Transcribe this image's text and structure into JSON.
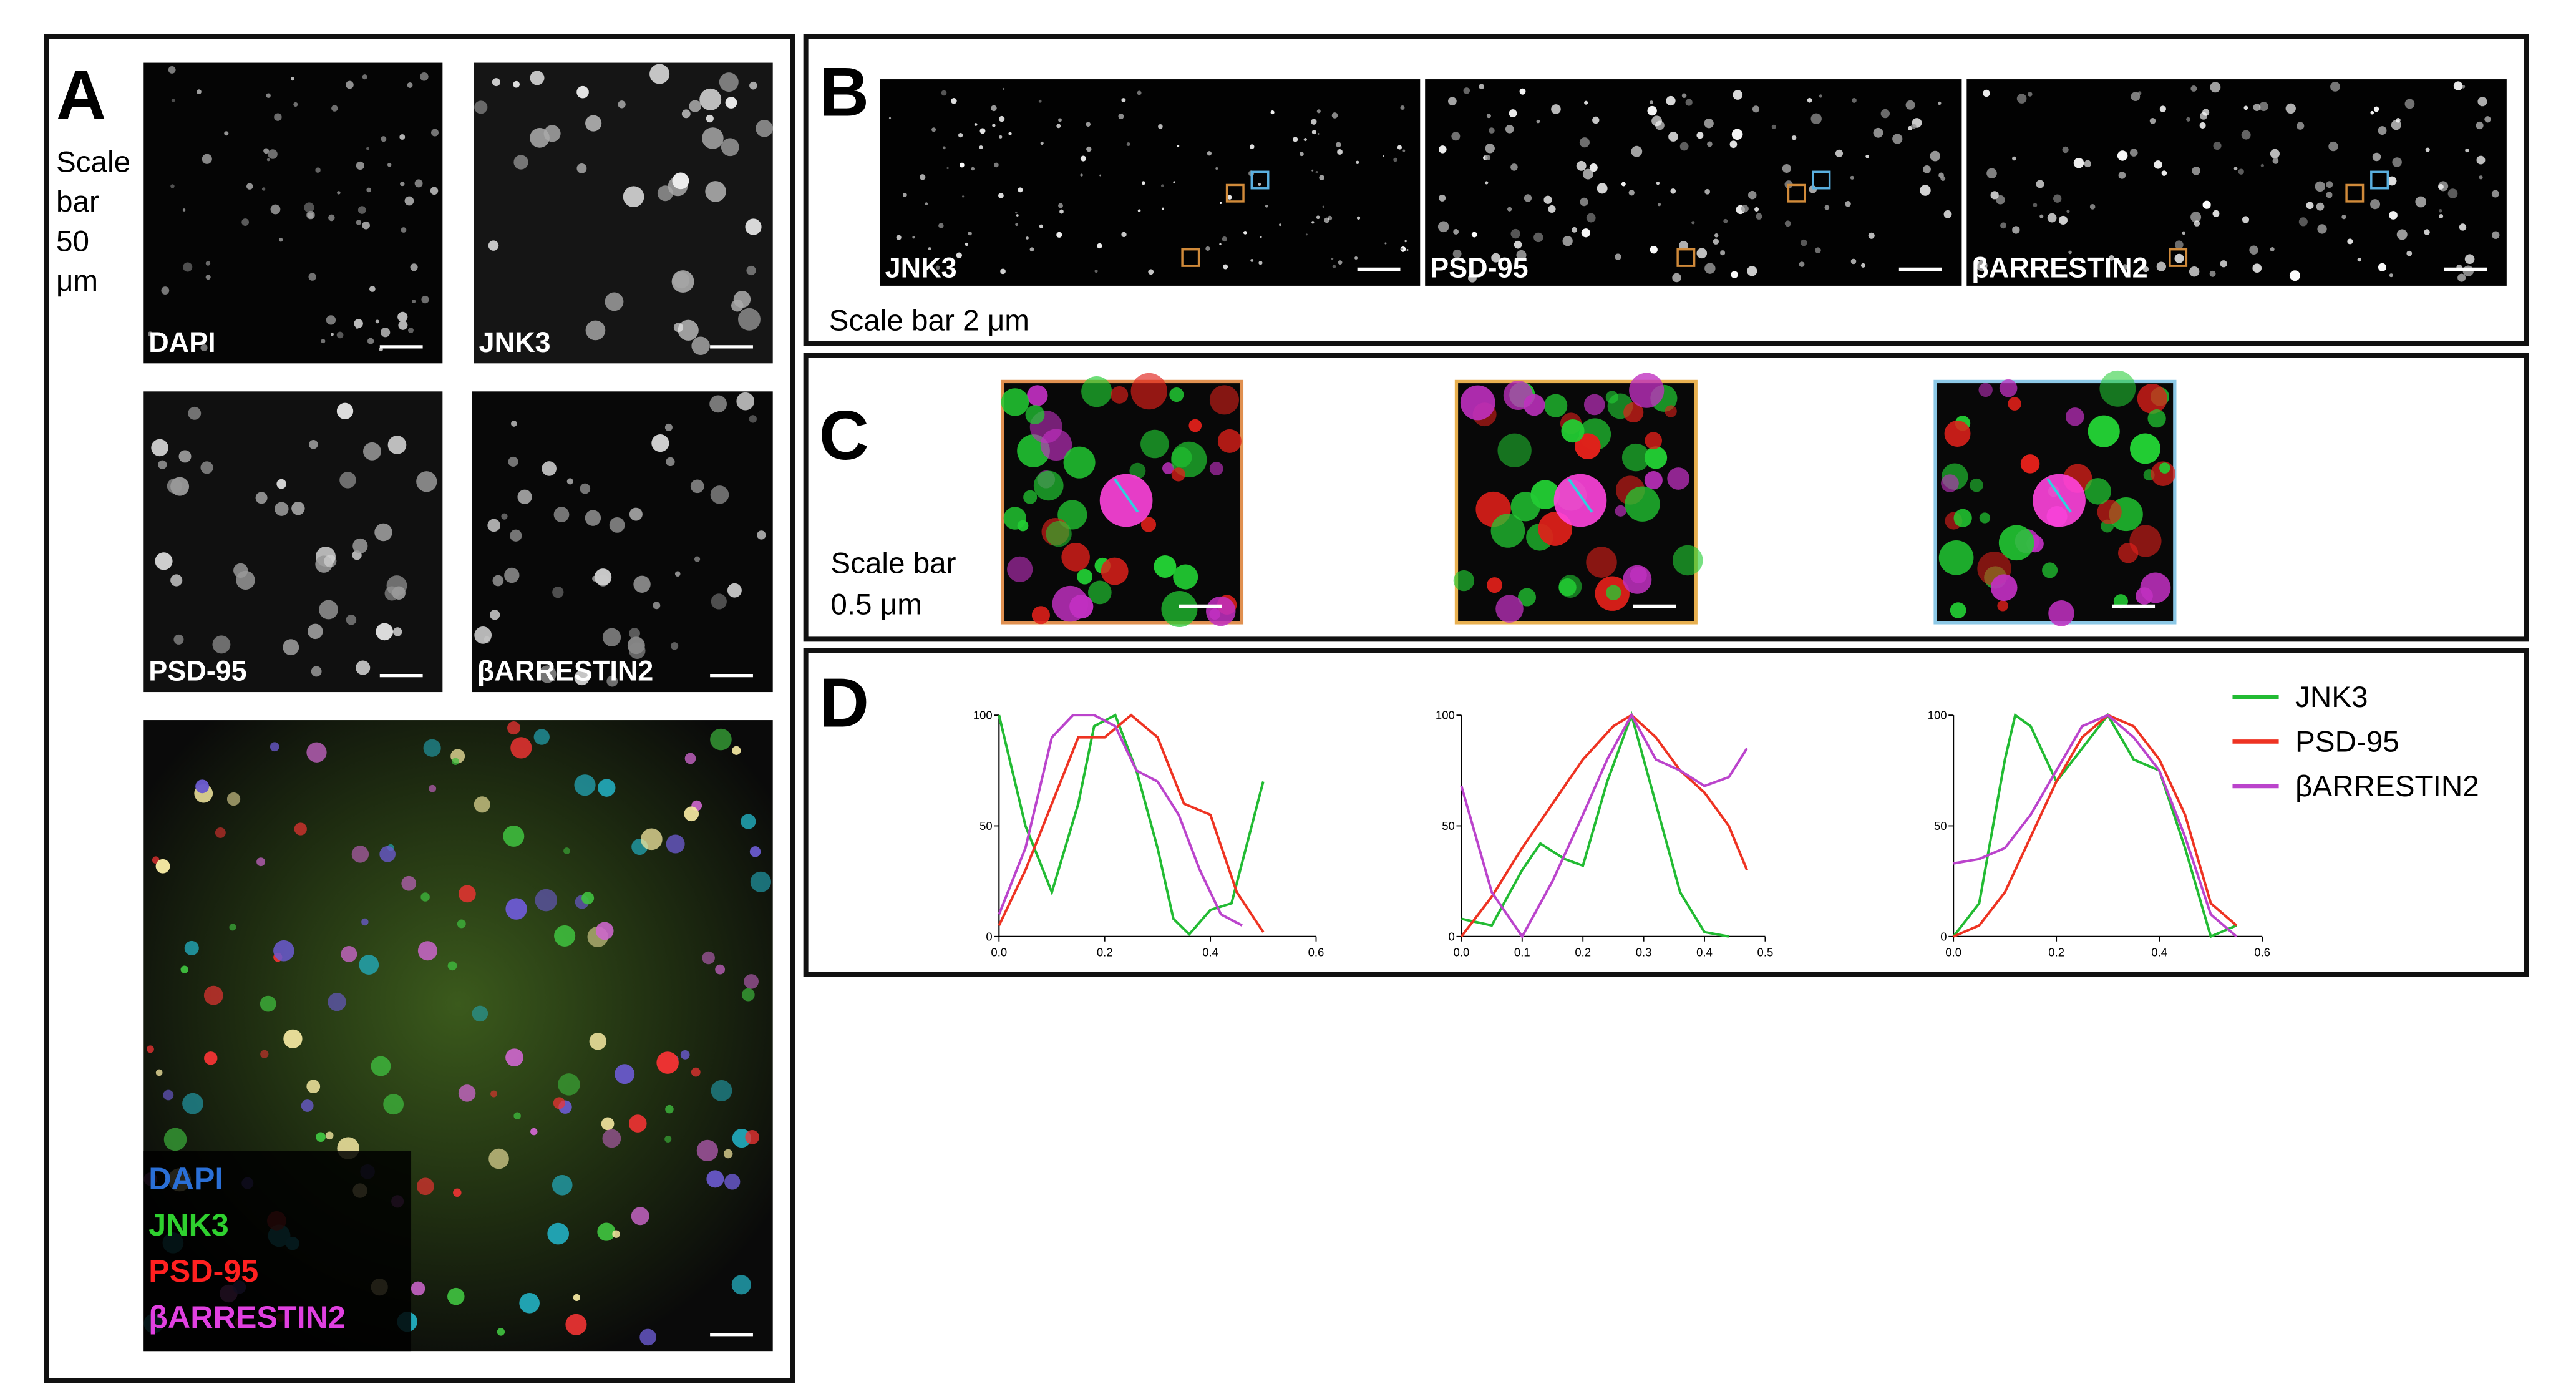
{
  "panel_a": {
    "letter": "A",
    "scale_bar": [
      "Scale",
      "bar",
      "50",
      "μm"
    ],
    "images": [
      "DAPI",
      "JNK3",
      "PSD-95",
      "βARRESTIN2"
    ],
    "merged_legend": [
      "DAPI",
      "JNK3",
      "PSD-95",
      "βARRESTIN2"
    ]
  },
  "panel_b": {
    "letter": "B",
    "images": [
      "JNK3",
      "PSD-95",
      "βARRESTIN2"
    ],
    "scale_bar": "Scale bar 2 μm"
  },
  "panel_c": {
    "letter": "C",
    "scale_bar": [
      "Scale bar",
      "0.5 μm"
    ]
  },
  "panel_d": {
    "letter": "D"
  },
  "chart_data": [
    {
      "type": "line",
      "xlim": [
        0,
        0.6
      ],
      "ylim": [
        0,
        100
      ],
      "xticks": [
        {
          "value": 0,
          "label": "0.0"
        },
        0.2,
        0.4,
        0.6
      ],
      "yticks": [
        0,
        50,
        100
      ],
      "series": [
        {
          "color": "#22bb33",
          "x": [
            0,
            0.05,
            0.1,
            0.15,
            0.18,
            0.22,
            0.26,
            0.3,
            0.33,
            0.36,
            0.4,
            0.44,
            0.5
          ],
          "values": [
            100,
            50,
            20,
            60,
            95,
            100,
            75,
            40,
            8,
            1,
            12,
            15,
            70
          ]
        },
        {
          "color": "#ee3322",
          "x": [
            0,
            0.05,
            0.1,
            0.15,
            0.2,
            0.25,
            0.3,
            0.35,
            0.4,
            0.45,
            0.5
          ],
          "values": [
            5,
            30,
            60,
            90,
            90,
            100,
            90,
            60,
            55,
            20,
            2
          ]
        },
        {
          "color": "#bb44cc",
          "x": [
            0,
            0.05,
            0.1,
            0.14,
            0.18,
            0.22,
            0.26,
            0.3,
            0.34,
            0.38,
            0.42,
            0.46
          ],
          "values": [
            10,
            40,
            90,
            100,
            100,
            95,
            75,
            70,
            55,
            30,
            10,
            5
          ]
        }
      ]
    },
    {
      "type": "line",
      "xlim": [
        0,
        0.5
      ],
      "ylim": [
        0,
        100
      ],
      "xticks": [
        {
          "value": 0,
          "label": "0.0"
        },
        0.1,
        0.2,
        0.3,
        0.4,
        0.5
      ],
      "yticks": [
        0,
        50,
        100
      ],
      "series": [
        {
          "color": "#22bb33",
          "x": [
            0,
            0.05,
            0.1,
            0.13,
            0.17,
            0.2,
            0.24,
            0.28,
            0.32,
            0.36,
            0.4,
            0.44
          ],
          "values": [
            8,
            5,
            30,
            42,
            35,
            32,
            70,
            100,
            60,
            20,
            2,
            0
          ]
        },
        {
          "color": "#ee3322",
          "x": [
            0,
            0.05,
            0.1,
            0.15,
            0.2,
            0.25,
            0.28,
            0.32,
            0.36,
            0.4,
            0.44,
            0.47
          ],
          "values": [
            0,
            18,
            40,
            60,
            80,
            95,
            100,
            90,
            75,
            65,
            50,
            30
          ]
        },
        {
          "color": "#bb44cc",
          "x": [
            0,
            0.05,
            0.1,
            0.15,
            0.2,
            0.24,
            0.28,
            0.32,
            0.36,
            0.4,
            0.44,
            0.47
          ],
          "values": [
            68,
            20,
            0,
            25,
            55,
            80,
            100,
            80,
            75,
            68,
            72,
            85
          ]
        }
      ]
    },
    {
      "type": "line",
      "xlim": [
        0,
        0.6
      ],
      "ylim": [
        0,
        100
      ],
      "xticks": [
        {
          "value": 0,
          "label": "0.0"
        },
        0.2,
        0.4,
        0.6
      ],
      "yticks": [
        0,
        50,
        100
      ],
      "series": [
        {
          "name": "JNK3",
          "color": "#22bb33",
          "x": [
            0,
            0.05,
            0.1,
            0.12,
            0.15,
            0.2,
            0.25,
            0.3,
            0.35,
            0.4,
            0.45,
            0.5,
            0.55
          ],
          "values": [
            0,
            15,
            80,
            100,
            95,
            70,
            85,
            100,
            80,
            75,
            40,
            0,
            5
          ]
        },
        {
          "name": "PSD-95",
          "color": "#ee3322",
          "x": [
            0,
            0.05,
            0.1,
            0.15,
            0.2,
            0.25,
            0.3,
            0.35,
            0.4,
            0.45,
            0.5,
            0.55
          ],
          "values": [
            0,
            5,
            20,
            45,
            70,
            90,
            100,
            95,
            80,
            55,
            15,
            5
          ]
        },
        {
          "name": "βARRESTIN2",
          "color": "#bb44cc",
          "x": [
            0,
            0.05,
            0.1,
            0.15,
            0.2,
            0.25,
            0.3,
            0.35,
            0.4,
            0.45,
            0.5,
            0.55
          ],
          "values": [
            33,
            35,
            40,
            55,
            75,
            95,
            100,
            90,
            75,
            45,
            10,
            0
          ]
        }
      ]
    }
  ]
}
